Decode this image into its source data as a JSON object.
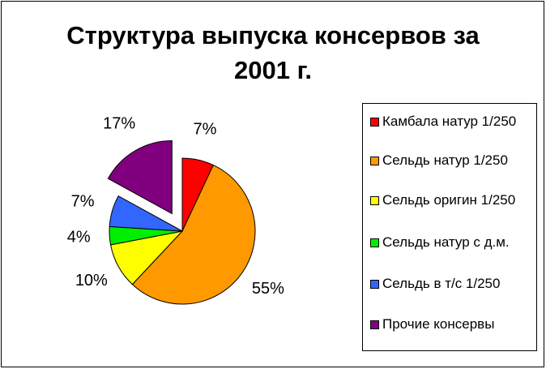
{
  "chart_data": {
    "type": "pie",
    "title": "Структура выпуска консервов за 2001 г.",
    "categories": [
      "Камбала натур 1/250",
      "Сельдь натур 1/250",
      "Сельдь оригин 1/250",
      "Сельдь натур с д.м.",
      "Сельдь в т/с 1/250",
      "Прочие консервы"
    ],
    "values": [
      7,
      55,
      10,
      4,
      7,
      17
    ],
    "value_labels": [
      "7%",
      "55%",
      "10%",
      "4%",
      "7%",
      "17%"
    ],
    "colors": [
      "#ff0000",
      "#ff9900",
      "#ffff00",
      "#00ee00",
      "#3366ff",
      "#800080"
    ],
    "exploded": [
      false,
      false,
      false,
      false,
      false,
      true
    ],
    "legend": "right"
  }
}
